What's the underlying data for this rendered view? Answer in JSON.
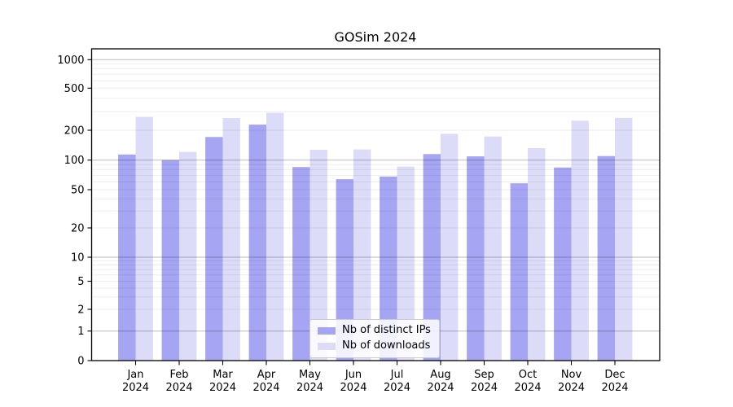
{
  "chart_data": {
    "type": "bar",
    "title": "GOSim 2024",
    "xlabel": "",
    "ylabel": "",
    "yscale": "symlog",
    "grid": true,
    "legend_position": "lower center",
    "yticks": [
      0,
      1,
      2,
      5,
      10,
      20,
      50,
      100,
      200,
      500,
      1000
    ],
    "ylim": [
      0,
      1400
    ],
    "categories": [
      "Jan",
      "Feb",
      "Mar",
      "Apr",
      "May",
      "Jun",
      "Jul",
      "Aug",
      "Sep",
      "Oct",
      "Nov",
      "Dec"
    ],
    "category_year": "2024",
    "series": [
      {
        "name": "Nb of distinct IPs",
        "color": "#a5a5f4",
        "values": [
          114,
          100,
          171,
          226,
          85,
          64,
          68,
          115,
          109,
          58,
          84,
          110
        ]
      },
      {
        "name": "Nb of downloads",
        "color": "#dcdcf8",
        "values": [
          268,
          121,
          261,
          292,
          127,
          128,
          86,
          184,
          173,
          132,
          246,
          262
        ]
      }
    ]
  }
}
